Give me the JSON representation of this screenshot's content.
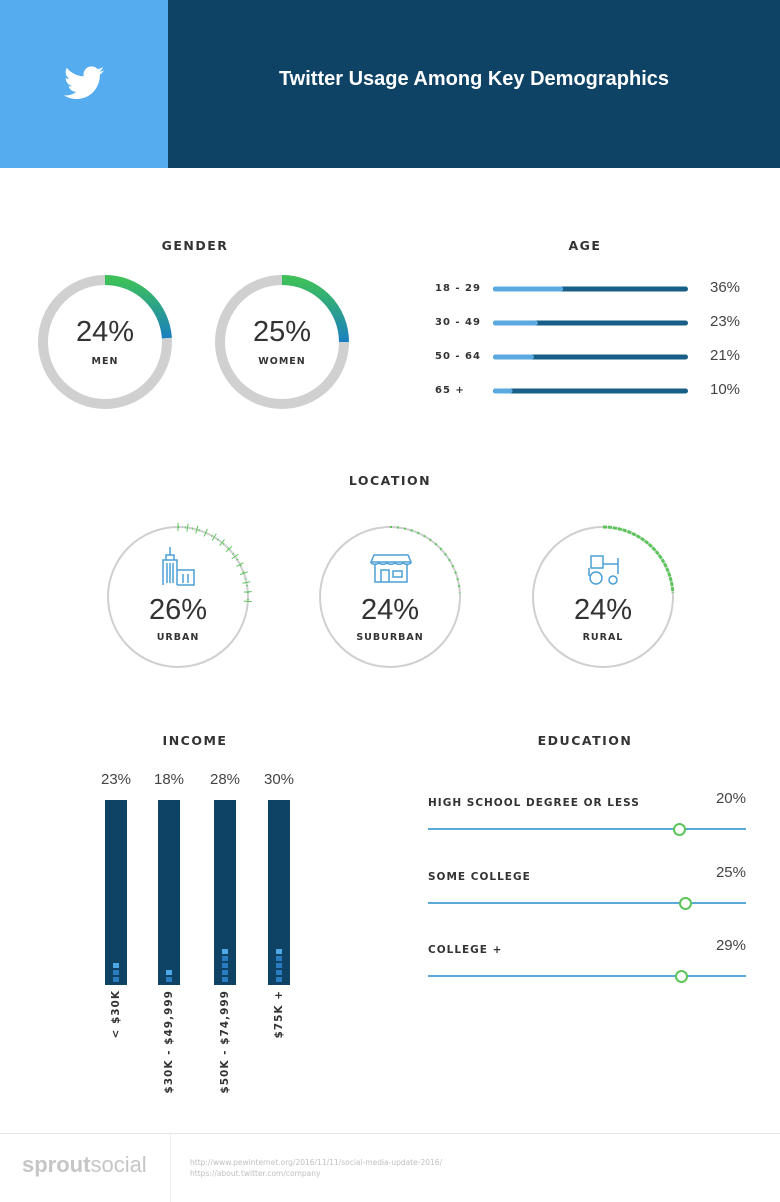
{
  "header": {
    "title": "Twitter Usage Among Key Demographics",
    "icon": "twitter-bird-icon",
    "colors": {
      "left": "#55acee",
      "right": "#0e4366"
    }
  },
  "chart_data": [
    {
      "type": "donut",
      "title": "GENDER",
      "categories": [
        "MEN",
        "WOMEN"
      ],
      "values": [
        24,
        25
      ],
      "labels": [
        "24%",
        "25%"
      ]
    },
    {
      "type": "bar",
      "orientation": "horizontal",
      "title": "AGE",
      "categories": [
        "18 - 29",
        "30 - 49",
        "50 - 64",
        "65 +"
      ],
      "values": [
        36,
        23,
        21,
        10
      ],
      "labels": [
        "36%",
        "23%",
        "21%",
        "10%"
      ],
      "xlim": [
        0,
        100
      ]
    },
    {
      "type": "radial",
      "title": "LOCATION",
      "categories": [
        "URBAN",
        "SUBURBAN",
        "RURAL"
      ],
      "values": [
        26,
        24,
        24
      ],
      "labels": [
        "26%",
        "24%",
        "24%"
      ],
      "icons": [
        "city-building-icon",
        "storefront-icon",
        "tractor-icon"
      ]
    },
    {
      "type": "bar",
      "title": "INCOME",
      "categories": [
        "< $30K",
        "$30K - $49,999",
        "$50K - $74,999",
        "$75K +"
      ],
      "values": [
        23,
        18,
        28,
        30
      ],
      "labels": [
        "23%",
        "18%",
        "28%",
        "30%"
      ],
      "square_counts": [
        3,
        2,
        5,
        5
      ]
    },
    {
      "type": "slider",
      "title": "EDUCATION",
      "categories": [
        "HIGH SCHOOL DEGREE OR LESS",
        "SOME COLLEGE",
        "COLLEGE +"
      ],
      "values": [
        20,
        25,
        29
      ],
      "labels": [
        "20%",
        "25%",
        "29%"
      ]
    }
  ],
  "footer": {
    "logo_bold": "sprout",
    "logo_light": "social",
    "sources": [
      "http://www.pewinternet.org/2016/11/11/social-media-update-2016/",
      "https://about.twitter.com/company"
    ]
  }
}
